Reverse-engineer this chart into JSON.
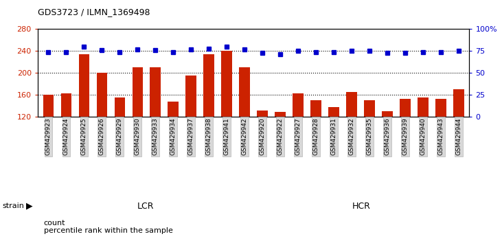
{
  "title": "GDS3723 / ILMN_1369498",
  "samples": [
    "GSM429923",
    "GSM429924",
    "GSM429925",
    "GSM429926",
    "GSM429929",
    "GSM429930",
    "GSM429933",
    "GSM429934",
    "GSM429937",
    "GSM429938",
    "GSM429941",
    "GSM429942",
    "GSM429920",
    "GSM429922",
    "GSM429927",
    "GSM429928",
    "GSM429931",
    "GSM429932",
    "GSM429935",
    "GSM429936",
    "GSM429939",
    "GSM429940",
    "GSM429943",
    "GSM429944"
  ],
  "counts": [
    160,
    163,
    234,
    200,
    155,
    210,
    210,
    148,
    195,
    234,
    241,
    210,
    131,
    129,
    163,
    150,
    138,
    165,
    150,
    130,
    152,
    155,
    152,
    170
  ],
  "percentile_ranks": [
    74,
    74,
    80,
    76,
    74,
    77,
    76,
    74,
    77,
    78,
    80,
    77,
    73,
    71,
    75,
    74,
    74,
    75,
    75,
    73,
    73,
    74,
    74,
    75
  ],
  "group_labels": [
    "LCR",
    "HCR"
  ],
  "group_sizes": [
    12,
    12
  ],
  "bar_color": "#cc2200",
  "dot_color": "#0000cc",
  "lcr_color": "#ccffcc",
  "hcr_color": "#44ee44",
  "tick_bg_color": "#d8d8d8",
  "ylim_left": [
    120,
    280
  ],
  "ylim_right": [
    0,
    100
  ],
  "yticks_left": [
    120,
    160,
    200,
    240,
    280
  ],
  "yticks_right": [
    0,
    25,
    50,
    75,
    100
  ],
  "legend_count": "count",
  "legend_pct": "percentile rank within the sample",
  "strain_label": "strain"
}
